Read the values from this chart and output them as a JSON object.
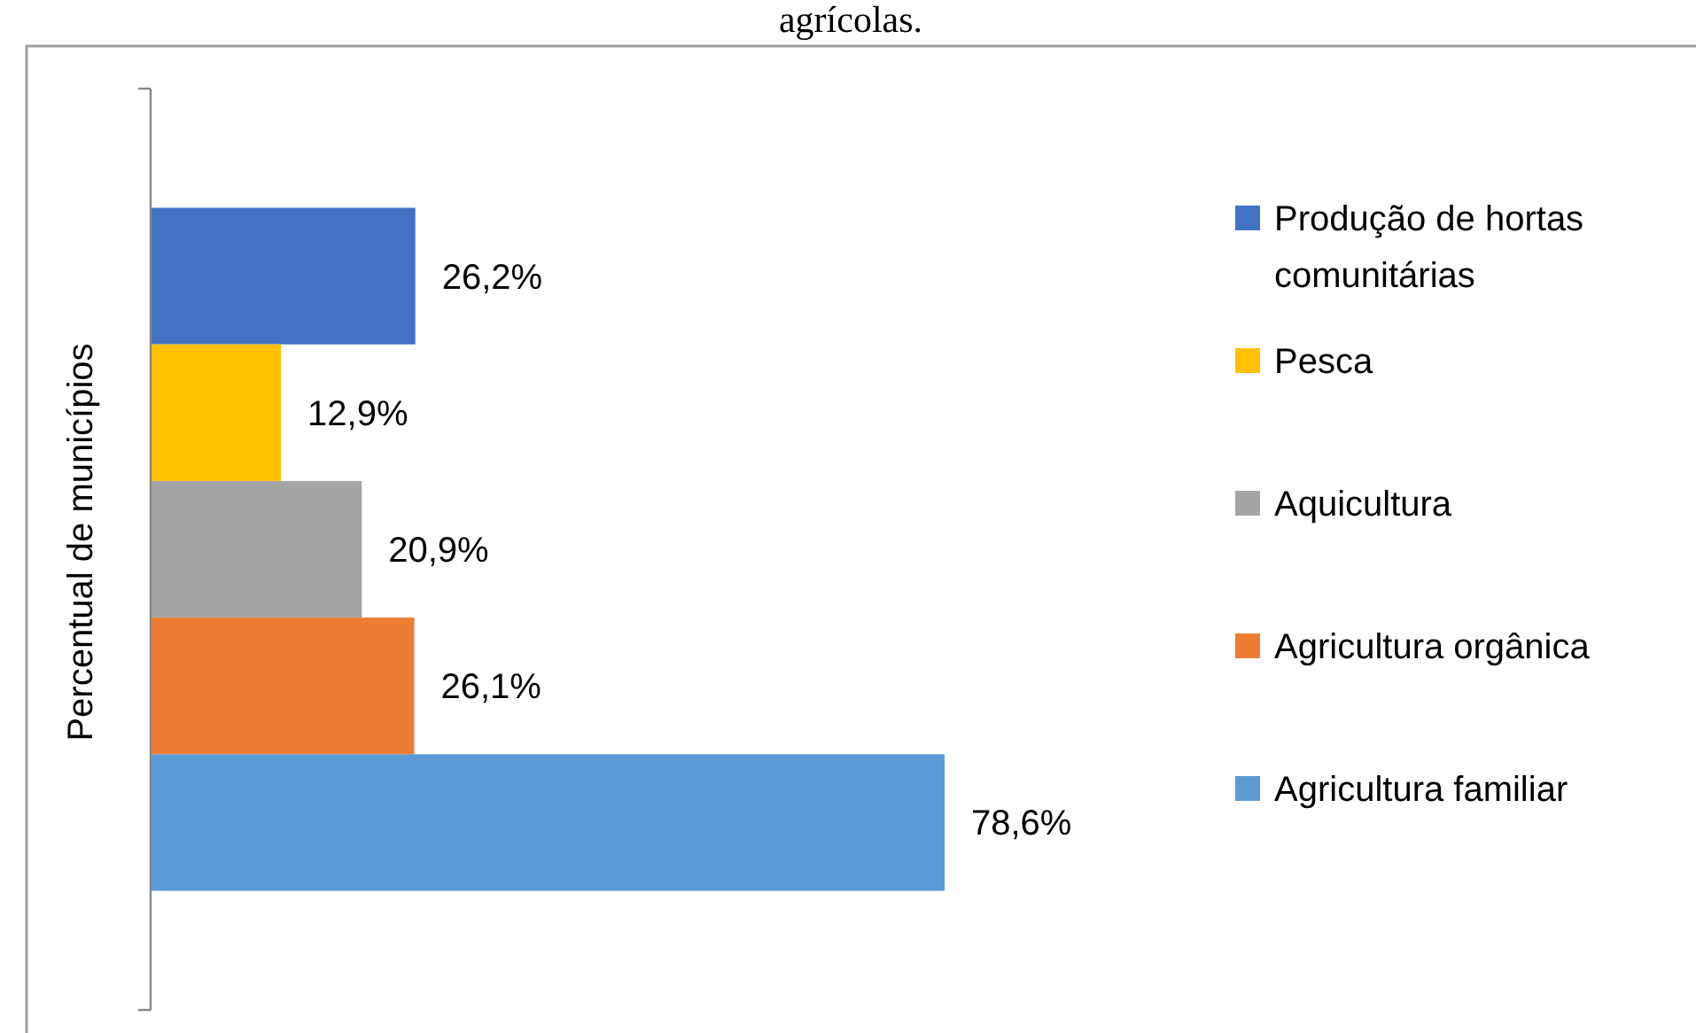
{
  "chart_data": {
    "type": "bar",
    "orientation": "horizontal",
    "title": "agrícolas.",
    "ylabel": "Percentual de municípios",
    "categories": [
      null
    ],
    "legend": "right",
    "series": [
      {
        "name": "Produção de hortas comunitárias",
        "color": "#4472c4",
        "values": [
          26.2
        ],
        "value_labels": [
          "26,2%"
        ]
      },
      {
        "name": "Pesca",
        "color": "#ffc000",
        "values": [
          12.9
        ],
        "value_labels": [
          "12,9%"
        ]
      },
      {
        "name": "Aquicultura",
        "color": "#a5a5a5",
        "values": [
          20.9
        ],
        "value_labels": [
          "20,9%"
        ]
      },
      {
        "name": "Agricultura orgânica",
        "color": "#ed7d31",
        "values": [
          26.1
        ],
        "value_labels": [
          "26,1%"
        ]
      },
      {
        "name": "Agricultura familiar",
        "color": "#5b9bd5",
        "values": [
          78.6
        ],
        "value_labels": [
          "78,6%"
        ]
      }
    ]
  }
}
